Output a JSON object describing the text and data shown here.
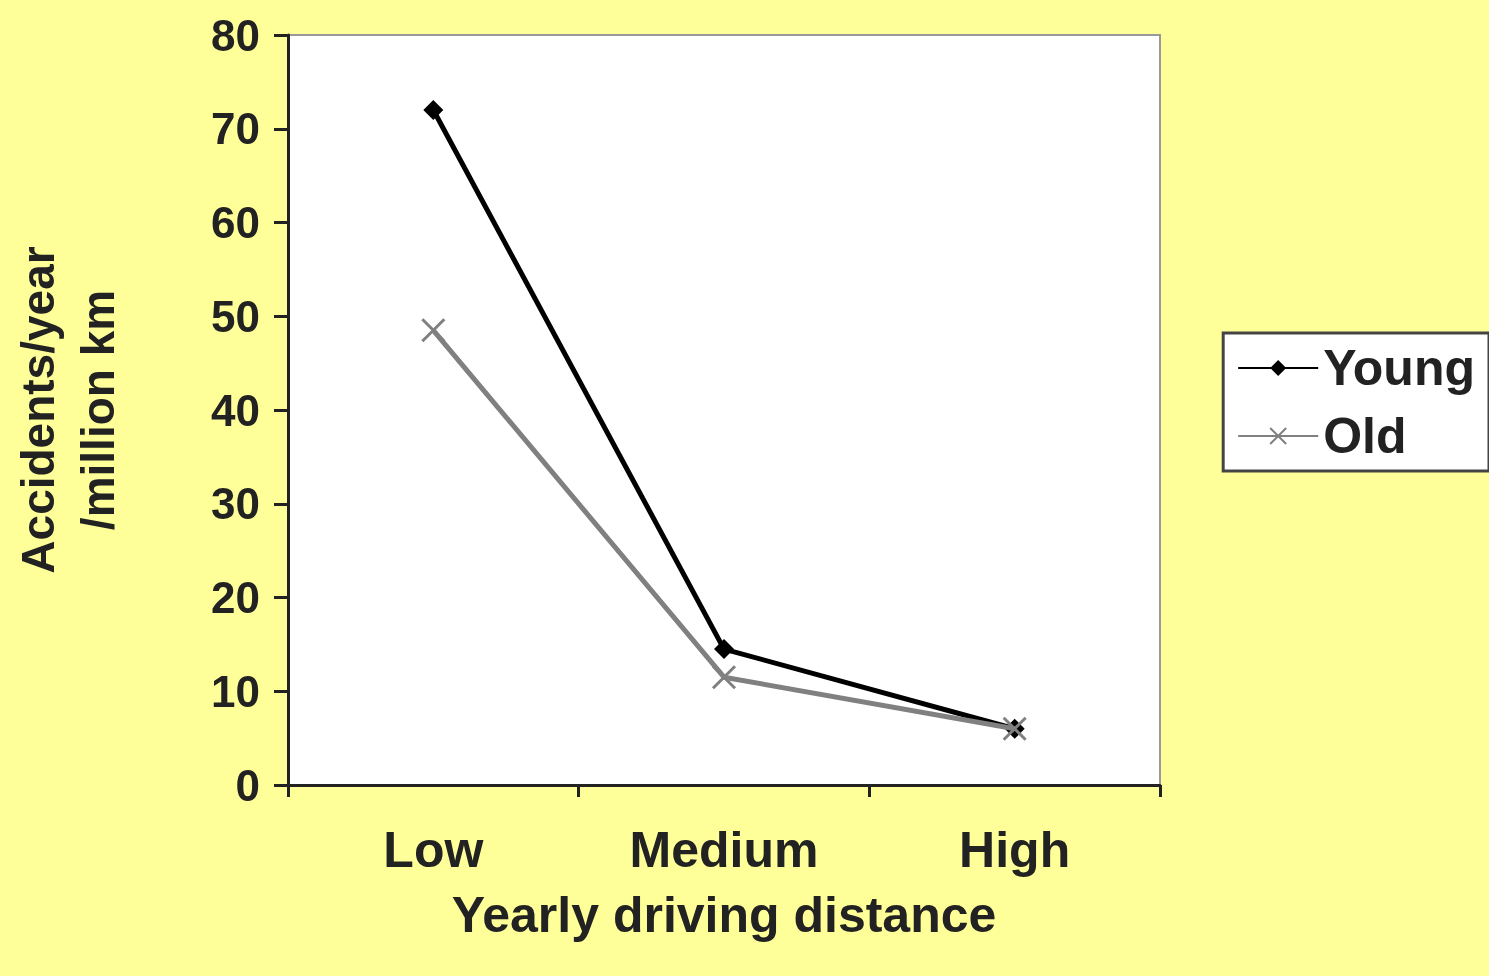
{
  "chart_data": {
    "type": "line",
    "xlabel": "Yearly driving distance",
    "ylabel": "Accidents/year\n/million km",
    "categories": [
      "Low",
      "Medium",
      "High"
    ],
    "series": [
      {
        "name": "Young",
        "color": "#000000",
        "marker": "diamond",
        "values": [
          72,
          14.5,
          6
        ]
      },
      {
        "name": "Old",
        "color": "#808080",
        "marker": "cross",
        "values": [
          48.5,
          11.5,
          6
        ]
      }
    ],
    "ylim": [
      0,
      80
    ],
    "yticks": [
      0,
      10,
      20,
      30,
      40,
      50,
      60,
      70,
      80
    ],
    "grid": false,
    "legend": "right"
  }
}
